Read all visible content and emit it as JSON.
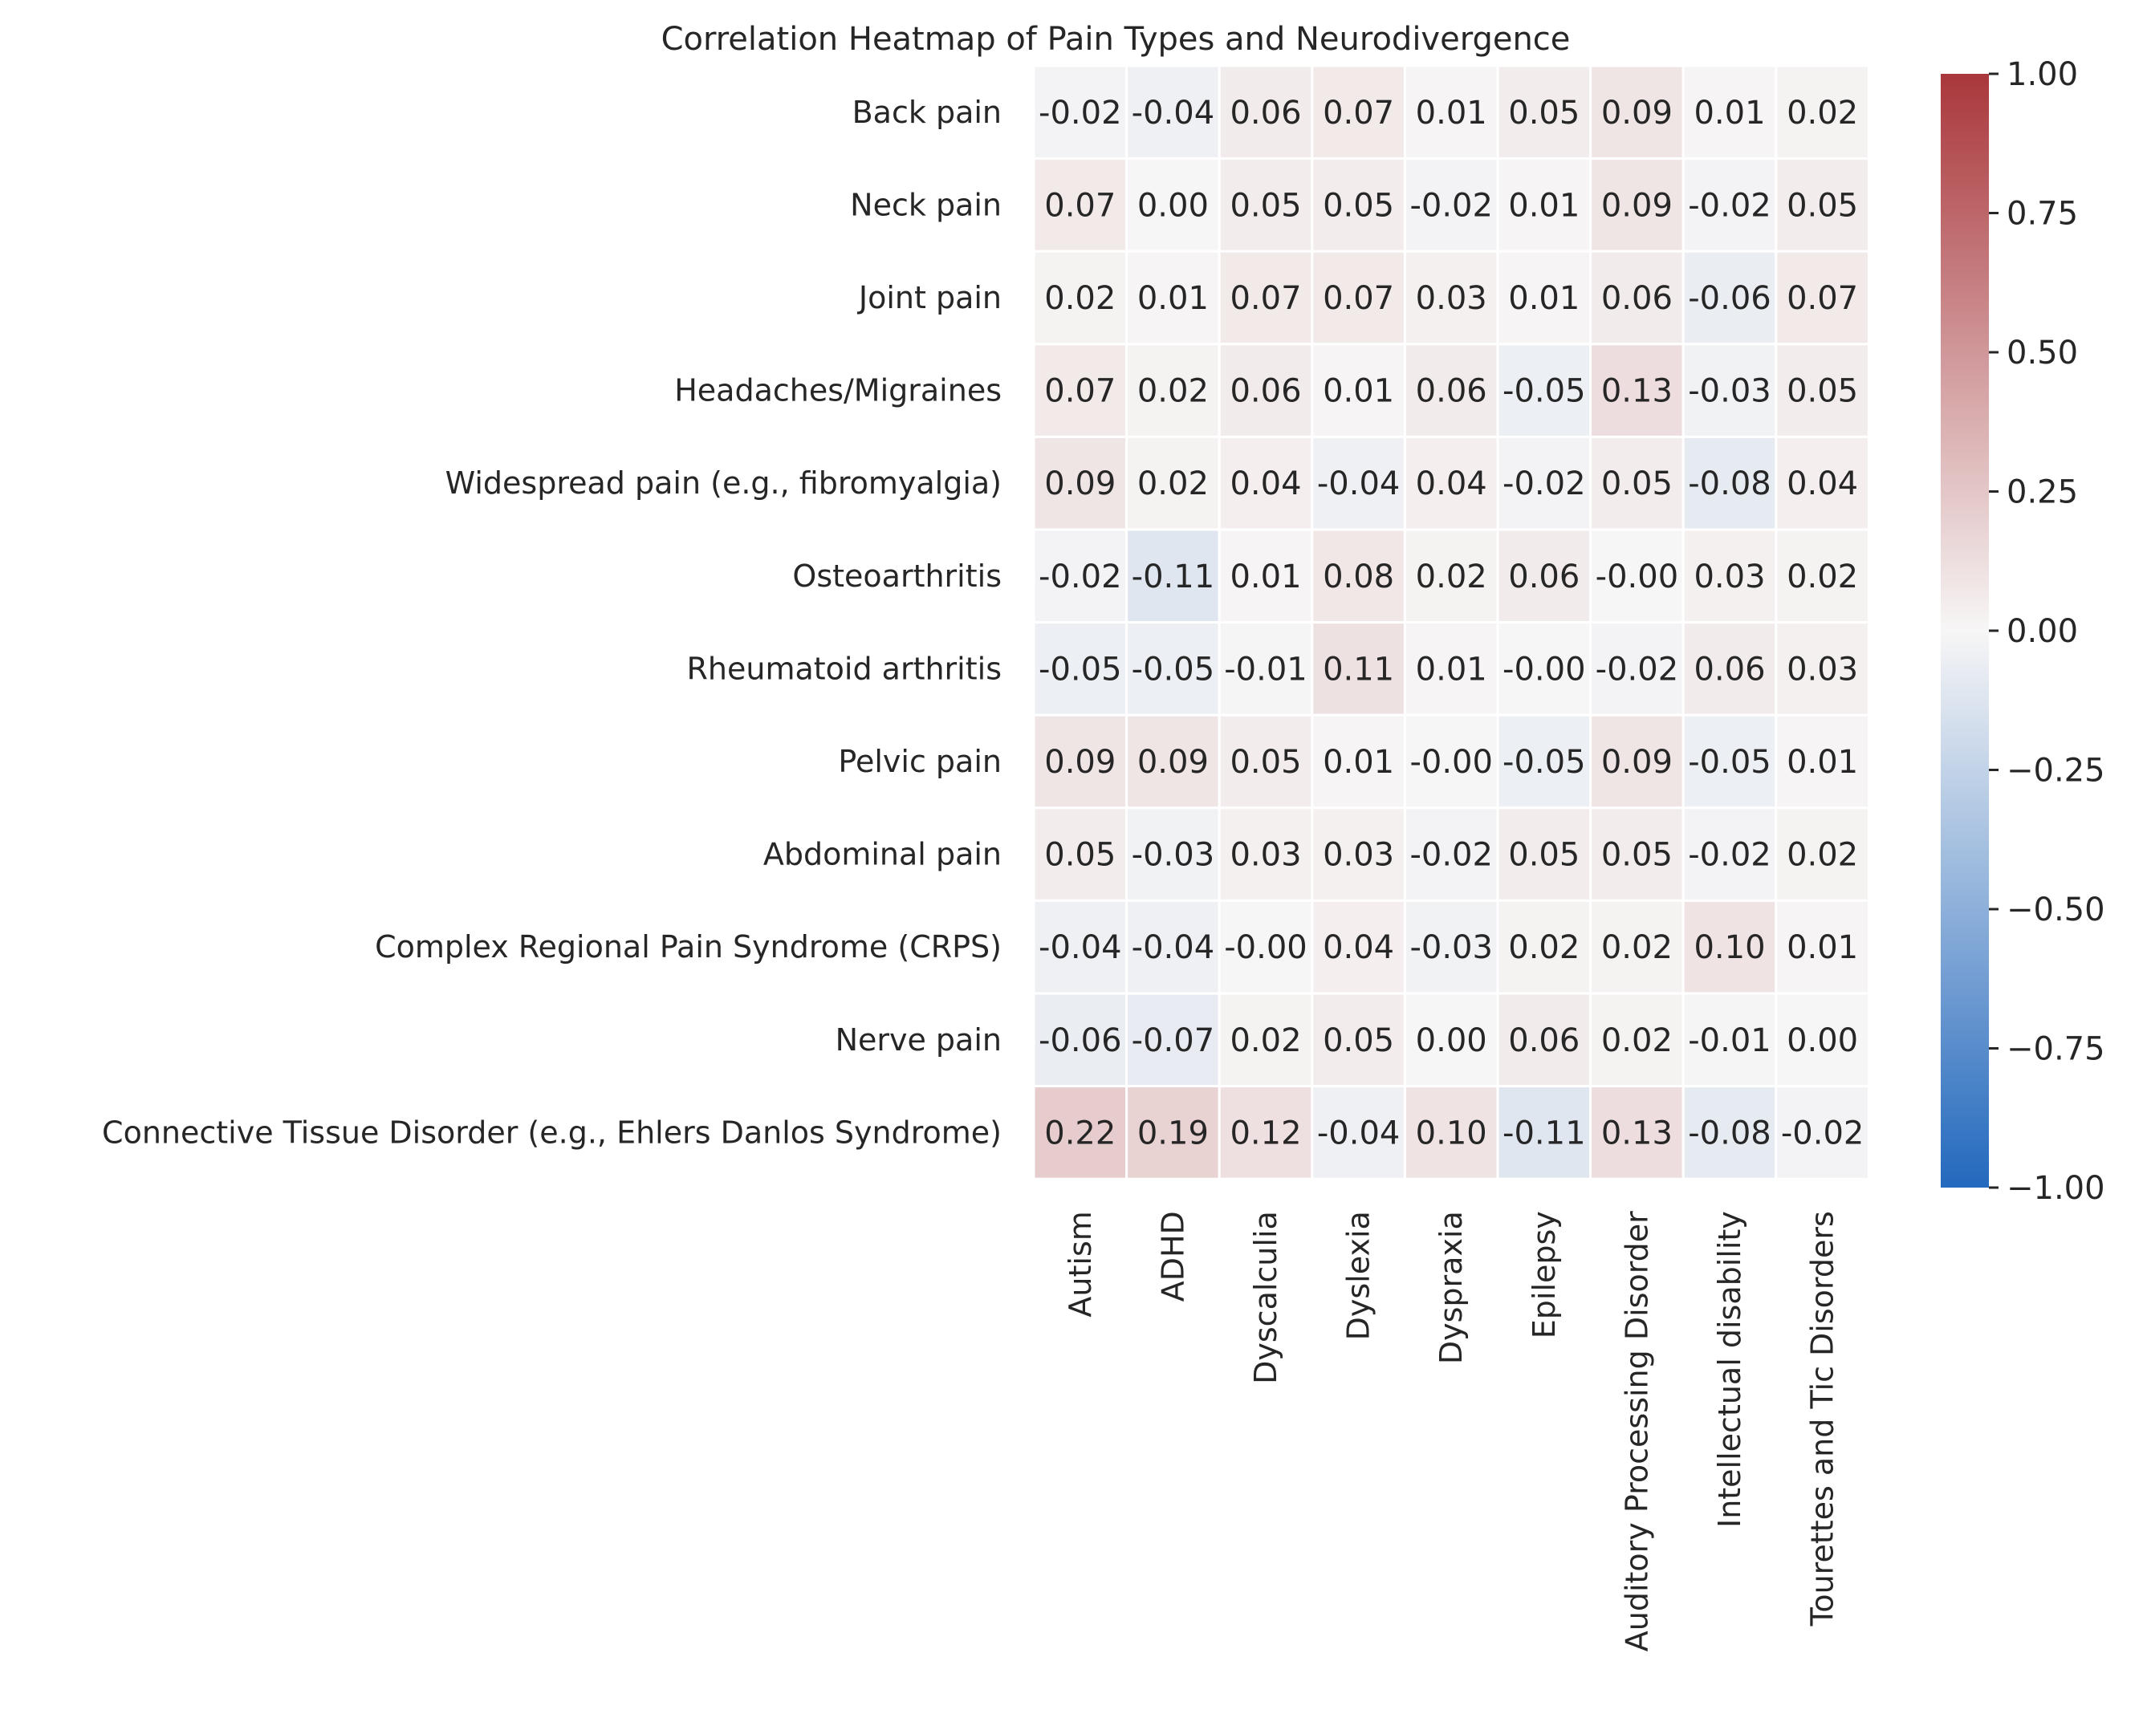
{
  "chart_data": {
    "type": "heatmap",
    "title": "Correlation Heatmap of Pain Types and Neurodivergence",
    "rows": [
      "Back pain",
      "Neck pain",
      "Joint pain",
      "Headaches/Migraines",
      "Widespread pain (e.g., fibromyalgia)",
      "Osteoarthritis",
      "Rheumatoid arthritis",
      "Pelvic pain",
      "Abdominal pain",
      "Complex Regional Pain Syndrome (CRPS)",
      "Nerve pain",
      "Connective Tissue Disorder (e.g., Ehlers Danlos Syndrome)"
    ],
    "columns": [
      "Autism",
      "ADHD",
      "Dyscalculia",
      "Dyslexia",
      "Dyspraxia",
      "Epilepsy",
      "Auditory Processing Disorder",
      "Intellectual disability",
      "Tourettes and Tic Disorders"
    ],
    "values": [
      [
        -0.02,
        -0.04,
        0.06,
        0.07,
        0.01,
        0.05,
        0.09,
        0.01,
        0.02
      ],
      [
        0.07,
        0.0,
        0.05,
        0.05,
        -0.02,
        0.01,
        0.09,
        -0.02,
        0.05
      ],
      [
        0.02,
        0.01,
        0.07,
        0.07,
        0.03,
        0.01,
        0.06,
        -0.06,
        0.07
      ],
      [
        0.07,
        0.02,
        0.06,
        0.01,
        0.06,
        -0.05,
        0.13,
        -0.03,
        0.05
      ],
      [
        0.09,
        0.02,
        0.04,
        -0.04,
        0.04,
        -0.02,
        0.05,
        -0.08,
        0.04
      ],
      [
        -0.02,
        -0.11,
        0.01,
        0.08,
        0.02,
        0.06,
        -0.0,
        0.03,
        0.02
      ],
      [
        -0.05,
        -0.05,
        -0.01,
        0.11,
        0.01,
        -0.0,
        -0.02,
        0.06,
        0.03
      ],
      [
        0.09,
        0.09,
        0.05,
        0.01,
        -0.0,
        -0.05,
        0.09,
        -0.05,
        0.01
      ],
      [
        0.05,
        -0.03,
        0.03,
        0.03,
        -0.02,
        0.05,
        0.05,
        -0.02,
        0.02
      ],
      [
        -0.04,
        -0.04,
        -0.0,
        0.04,
        -0.03,
        0.02,
        0.02,
        0.1,
        0.01
      ],
      [
        -0.06,
        -0.07,
        0.02,
        0.05,
        0.0,
        0.06,
        0.02,
        -0.01,
        0.0
      ],
      [
        0.22,
        0.19,
        0.12,
        -0.04,
        0.1,
        -0.11,
        0.13,
        -0.08,
        -0.02
      ]
    ],
    "annotations": [
      [
        "-0.02",
        "-0.04",
        "0.06",
        "0.07",
        "0.01",
        "0.05",
        "0.09",
        "0.01",
        "0.02"
      ],
      [
        "0.07",
        "0.00",
        "0.05",
        "0.05",
        "-0.02",
        "0.01",
        "0.09",
        "-0.02",
        "0.05"
      ],
      [
        "0.02",
        "0.01",
        "0.07",
        "0.07",
        "0.03",
        "0.01",
        "0.06",
        "-0.06",
        "0.07"
      ],
      [
        "0.07",
        "0.02",
        "0.06",
        "0.01",
        "0.06",
        "-0.05",
        "0.13",
        "-0.03",
        "0.05"
      ],
      [
        "0.09",
        "0.02",
        "0.04",
        "-0.04",
        "0.04",
        "-0.02",
        "0.05",
        "-0.08",
        "0.04"
      ],
      [
        "-0.02",
        "-0.11",
        "0.01",
        "0.08",
        "0.02",
        "0.06",
        "-0.00",
        "0.03",
        "0.02"
      ],
      [
        "-0.05",
        "-0.05",
        "-0.01",
        "0.11",
        "0.01",
        "-0.00",
        "-0.02",
        "0.06",
        "0.03"
      ],
      [
        "0.09",
        "0.09",
        "0.05",
        "0.01",
        "-0.00",
        "-0.05",
        "0.09",
        "-0.05",
        "0.01"
      ],
      [
        "0.05",
        "-0.03",
        "0.03",
        "0.03",
        "-0.02",
        "0.05",
        "0.05",
        "-0.02",
        "0.02"
      ],
      [
        "-0.04",
        "-0.04",
        "-0.00",
        "0.04",
        "-0.03",
        "0.02",
        "0.02",
        "0.10",
        "0.01"
      ],
      [
        "-0.06",
        "-0.07",
        "0.02",
        "0.05",
        "0.00",
        "0.06",
        "0.02",
        "-0.01",
        "0.00"
      ],
      [
        "0.22",
        "0.19",
        "0.12",
        "-0.04",
        "0.10",
        "-0.11",
        "0.13",
        "-0.08",
        "-0.02"
      ]
    ],
    "colorbar": {
      "range": [
        -1,
        1
      ],
      "ticks": [
        "1.00",
        "0.75",
        "0.50",
        "0.25",
        "0.00",
        "−0.25",
        "−0.50",
        "−0.75",
        "−1.00"
      ],
      "colormap": "vlag",
      "low_color": "#2369bd",
      "mid_color": "#f7f6f6",
      "high_color": "#a9373b"
    },
    "grid": false
  }
}
